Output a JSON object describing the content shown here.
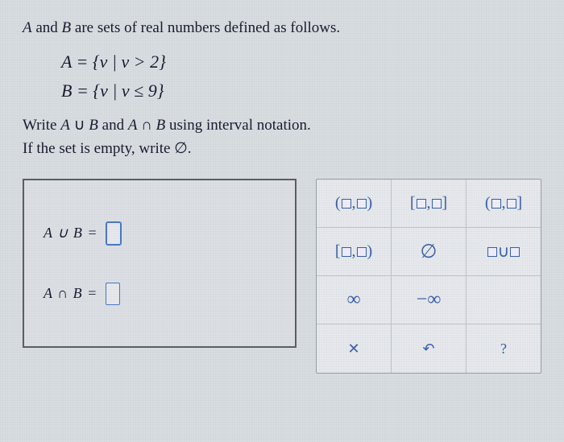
{
  "intro": "A and B are sets of real numbers defined as follows.",
  "setA": "A = {v | v > 2}",
  "setB": "B = {v | v ≤ 9}",
  "instruct1": "Write A ∪ B and A ∩ B using interval notation.",
  "instruct2": "If the set is empty, write ∅.",
  "answers": {
    "union_lhs": "A ∪ B =",
    "intersect_lhs": "A ∩ B ="
  },
  "palette": {
    "r1": {
      "c1": "(▫,▫)",
      "c2": "[▫,▫]",
      "c3": "(▫,▫]"
    },
    "r2": {
      "c1": "[▫,▫)",
      "c2": "∅",
      "c3": "▫∪▫"
    },
    "r3": {
      "c1": "∞",
      "c2": "−∞",
      "c3": ""
    },
    "r4": {
      "c1": "✕",
      "c2": "↶",
      "c3": "?"
    }
  },
  "colors": {
    "bg": "#d8dde2",
    "text": "#1a1a2e",
    "border": "#5a5f68",
    "accent": "#3a5fa8",
    "inputborder": "#4a78c4"
  }
}
